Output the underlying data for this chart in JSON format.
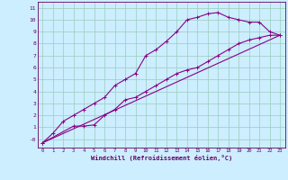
{
  "background_color": "#cceeff",
  "grid_color": "#99ccbb",
  "line_color": "#880088",
  "spine_color": "#660066",
  "xlabel": "Windchill (Refroidissement éolien,°C)",
  "xlim": [
    -0.5,
    23.5
  ],
  "ylim": [
    -0.7,
    11.5
  ],
  "xticks": [
    0,
    1,
    2,
    3,
    4,
    5,
    6,
    7,
    8,
    9,
    10,
    11,
    12,
    13,
    14,
    15,
    16,
    17,
    18,
    19,
    20,
    21,
    22,
    23
  ],
  "yticks": [
    0,
    1,
    2,
    3,
    4,
    5,
    6,
    7,
    8,
    9,
    10,
    11
  ],
  "ytick_labels": [
    "-0",
    "1",
    "2",
    "3",
    "4",
    "5",
    "6",
    "7",
    "8",
    "9",
    "10",
    "11"
  ],
  "curve1_x": [
    0,
    1,
    2,
    3,
    4,
    5,
    6,
    7,
    8,
    9,
    10,
    11,
    12,
    13,
    14,
    15,
    16,
    17,
    18,
    19,
    20,
    21,
    22,
    23
  ],
  "curve1_y": [
    -0.3,
    0.5,
    1.5,
    2.0,
    2.5,
    3.0,
    3.5,
    4.5,
    5.0,
    5.5,
    7.0,
    7.5,
    8.2,
    9.0,
    10.0,
    10.2,
    10.5,
    10.6,
    10.2,
    10.0,
    9.8,
    9.8,
    9.0,
    8.7
  ],
  "curve2_x": [
    0,
    3,
    4,
    5,
    6,
    7,
    8,
    9,
    10,
    11,
    12,
    13,
    14,
    15,
    16,
    17,
    18,
    19,
    20,
    21,
    22,
    23
  ],
  "curve2_y": [
    -0.3,
    1.1,
    1.1,
    1.2,
    2.0,
    2.5,
    3.3,
    3.5,
    4.0,
    4.5,
    5.0,
    5.5,
    5.8,
    6.0,
    6.5,
    7.0,
    7.5,
    8.0,
    8.3,
    8.5,
    8.7,
    8.7
  ],
  "curve3_x": [
    0,
    23
  ],
  "curve3_y": [
    -0.3,
    8.7
  ],
  "lw": 0.8
}
